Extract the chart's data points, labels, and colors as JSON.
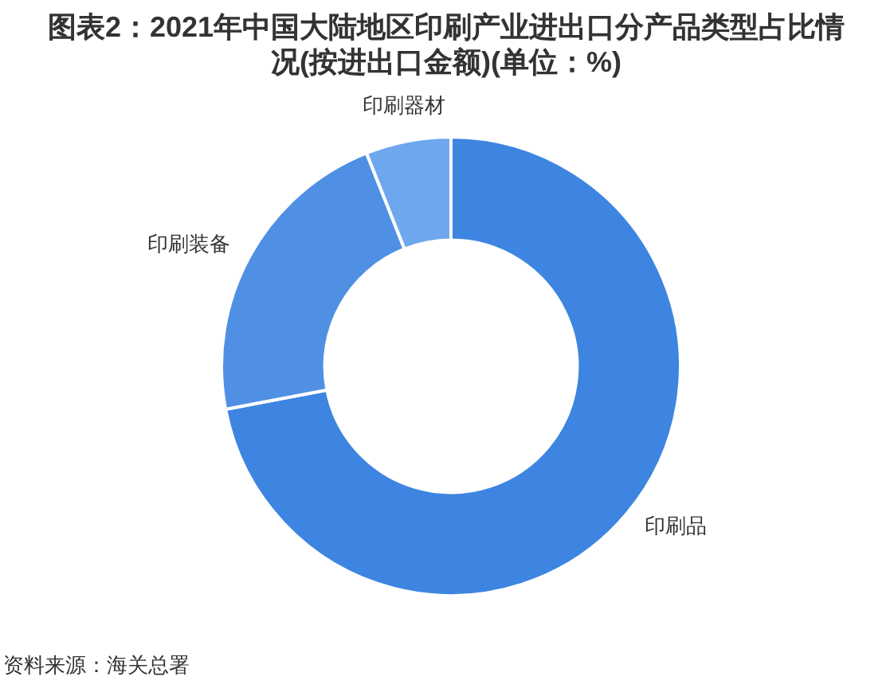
{
  "chart_data": {
    "type": "donut",
    "title": "图表2：2021年中国大陆地区印刷产业进出口分产品类型占比情况(按进出口金额)(单位：%)",
    "categories": [
      "印刷品",
      "印刷装备",
      "印刷器材"
    ],
    "values": [
      72,
      22,
      6
    ],
    "colors": [
      "#3d85e0",
      "#4f90e4",
      "#6fa7ee"
    ],
    "annotations": [
      "资料来源：海关总署"
    ]
  }
}
